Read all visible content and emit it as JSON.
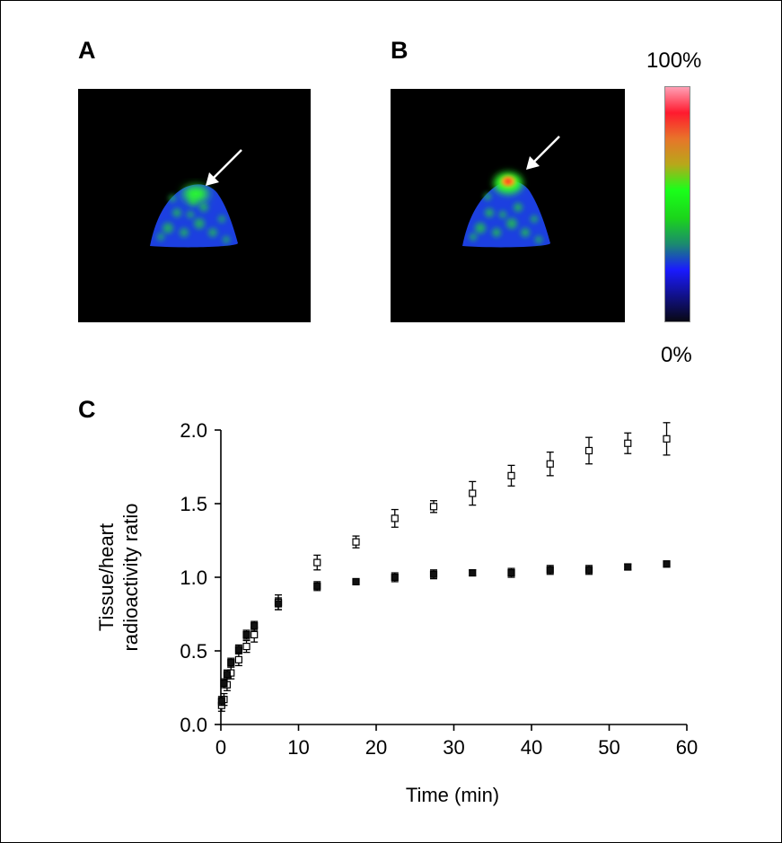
{
  "panels": {
    "a_label": "A",
    "b_label": "B",
    "c_label": "C"
  },
  "colorbar": {
    "max_label": "100%",
    "min_label": "0%",
    "colors": [
      "#ff9fb4",
      "#ff1a2e",
      "#e8742a",
      "#b8a81a",
      "#1aff1a",
      "#1bd41b",
      "#1b8a6f",
      "#1a1aff",
      "#11118a",
      "#080814"
    ]
  },
  "scan_colors": {
    "background": "#000000",
    "body": "#1c3fe0",
    "mottle": "#22c44a",
    "hot_green": "#2cff2c",
    "hot_red": "#ff2a1a",
    "hot_orange": "#ffb21a",
    "arrow": "#ffffff"
  },
  "chart_data": {
    "type": "scatter",
    "xlabel": "Time (min)",
    "ylabel": [
      "Tissue/heart",
      "radioactivity ratio"
    ],
    "xlim": [
      0,
      60
    ],
    "ylim": [
      0,
      2.0
    ],
    "xticks": [
      0,
      10,
      20,
      30,
      40,
      50,
      60
    ],
    "yticks": [
      "0.0",
      "0.5",
      "1.0",
      "1.5",
      "2.0"
    ],
    "series": [
      {
        "marker": "open",
        "x": [
          0.1,
          0.4,
          0.8,
          1.3,
          2.3,
          3.3,
          4.3,
          7.4,
          12.4,
          17.4,
          22.4,
          27.4,
          32.4,
          37.4,
          42.4,
          47.4,
          52.4,
          57.4
        ],
        "y": [
          0.13,
          0.17,
          0.27,
          0.35,
          0.44,
          0.53,
          0.61,
          0.83,
          1.1,
          1.24,
          1.4,
          1.48,
          1.57,
          1.69,
          1.77,
          1.86,
          1.91,
          1.94
        ],
        "err": [
          0.04,
          0.04,
          0.04,
          0.04,
          0.04,
          0.04,
          0.05,
          0.05,
          0.05,
          0.04,
          0.06,
          0.04,
          0.08,
          0.07,
          0.08,
          0.09,
          0.07,
          0.11
        ]
      },
      {
        "marker": "filled",
        "x": [
          0.1,
          0.4,
          0.8,
          1.3,
          2.3,
          3.3,
          4.3,
          7.4,
          12.4,
          17.4,
          22.4,
          27.4,
          32.4,
          37.4,
          42.4,
          47.4,
          52.4,
          57.4
        ],
        "y": [
          0.16,
          0.28,
          0.34,
          0.42,
          0.51,
          0.61,
          0.67,
          0.82,
          0.94,
          0.97,
          1.0,
          1.02,
          1.03,
          1.03,
          1.05,
          1.05,
          1.07,
          1.09
        ],
        "err": [
          0.03,
          0.03,
          0.03,
          0.03,
          0.03,
          0.03,
          0.03,
          0.04,
          0.03,
          0.02,
          0.03,
          0.03,
          0.02,
          0.03,
          0.03,
          0.03,
          0.02,
          0.02
        ]
      }
    ]
  }
}
